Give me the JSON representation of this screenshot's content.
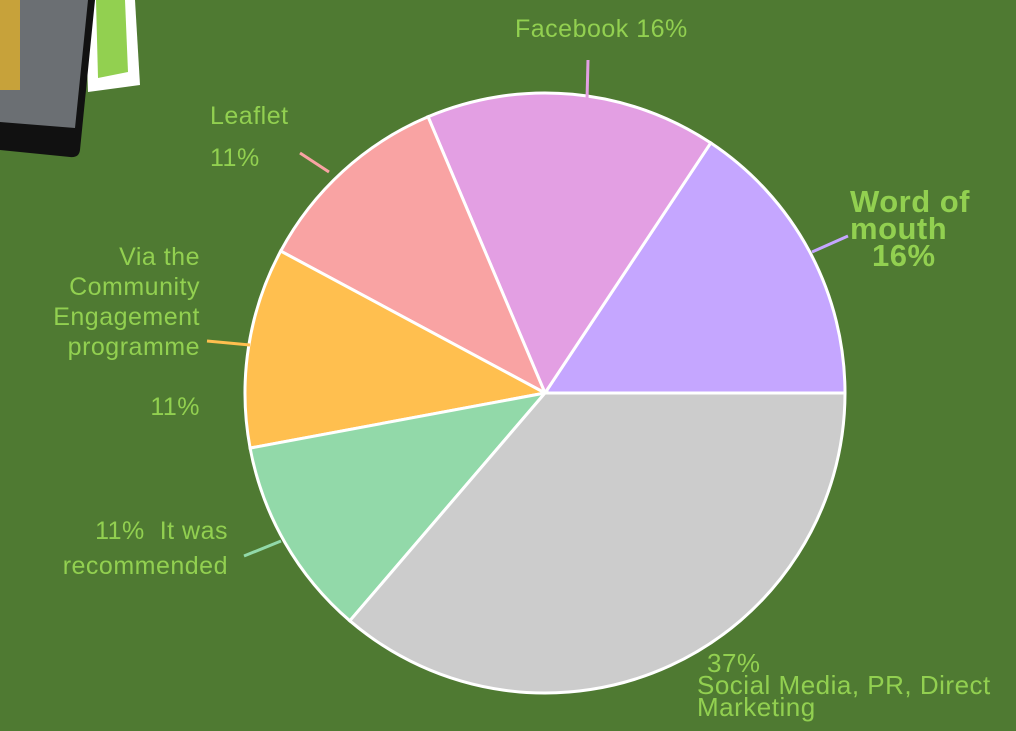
{
  "chart_data": {
    "type": "pie",
    "categories": [
      "Word of mouth",
      "Facebook",
      "Leaflet",
      "Via the Community Engagement programme",
      "It was recommended",
      "Social Media, PR, Direct Marketing"
    ],
    "values": [
      16,
      16,
      11,
      11,
      11,
      37
    ],
    "value_labels": [
      "16%",
      "16%",
      "11%",
      "11%",
      "11%",
      "37%"
    ],
    "colors": [
      "#c5a6ff",
      "#e39fe3",
      "#f9a3a3",
      "#ffbf4f",
      "#92d9a9",
      "#cccccc"
    ]
  }
}
